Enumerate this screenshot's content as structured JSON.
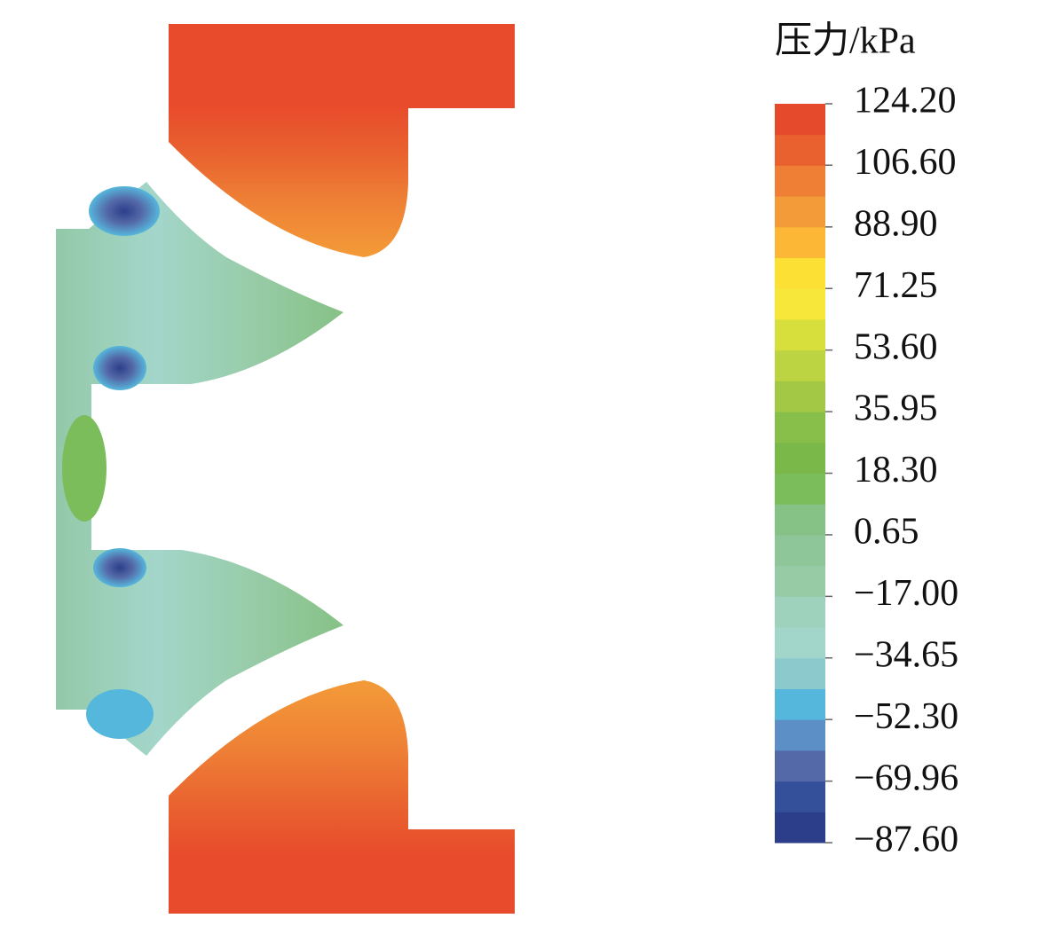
{
  "chart_data": {
    "type": "colorbar",
    "title": "压力/kPa",
    "ylim": [
      -87.6,
      124.2
    ],
    "yticks": [
      {
        "value": 124.2,
        "label": "124.20"
      },
      {
        "value": 106.6,
        "label": "106.60"
      },
      {
        "value": 88.9,
        "label": "88.90"
      },
      71.25,
      {
        "value": 53.6,
        "label": "53.60"
      },
      35.95,
      {
        "value": 18.3,
        "label": "18.30"
      },
      0.65,
      {
        "value": -17,
        "label": "−17.00"
      },
      {
        "value": -34.65,
        "label": "−34.65"
      },
      {
        "value": -52.3,
        "label": "−52.30"
      },
      {
        "value": -69.96,
        "label": "−69.96"
      },
      {
        "value": -87.6,
        "label": "−87.60"
      }
    ],
    "colors": [
      "#2c3e8a",
      "#35509a",
      "#5469a8",
      "#5b8fc5",
      "#56b7dc",
      "#8cc9cc",
      "#a3d6ca",
      "#9fd2bd",
      "#97cba6",
      "#8ec69a",
      "#86c185",
      "#7bbc5b",
      "#7ab84a",
      "#88bf4b",
      "#a3c845",
      "#bcd441",
      "#d6df3c",
      "#f7e73a",
      "#fce134",
      "#fbb735",
      "#f39b38",
      "#ee7f35",
      "#e9612f",
      "#e64a2c"
    ]
  }
}
